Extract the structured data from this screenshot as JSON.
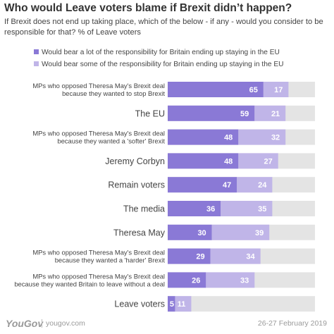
{
  "title": "Who would Leave voters blame if Brexit didn’t happen?",
  "subtitle": "If Brexit does not end up taking place, which of the below - if any - would you consider to be responsible for that? % of Leave voters",
  "colors": {
    "dark": "#8a79d6",
    "light": "#c0b5e8",
    "track": "#e4e4e4"
  },
  "footer": {
    "logo": "YouGov",
    "url": "yougov.com",
    "date": "26-27 February 2019"
  },
  "chart_data": {
    "type": "bar",
    "orientation": "horizontal",
    "stacked": true,
    "xlim": [
      0,
      100
    ],
    "grid": false,
    "legend_position": "top",
    "categories": [
      "MPs who opposed Theresa May's Brexit deal because they wanted to stop Brexit",
      "The EU",
      "MPs who opposed Theresa May's Brexit deal because they wanted a 'softer' Brexit",
      "Jeremy Corbyn",
      "Remain voters",
      "The media",
      "Theresa May",
      "MPs who opposed Theresa May's Brexit deal because they wanted a 'harder' Brexit",
      "MPs who opposed Theresa May's Brexit deal because they wanted Britain to leave without a deal",
      "Leave voters"
    ],
    "category_lines": [
      [
        "MPs who opposed Theresa May's Brexit deal",
        "because they wanted to stop Brexit"
      ],
      [
        "The EU"
      ],
      [
        "MPs who opposed Theresa May's Brexit deal",
        "because they wanted a 'softer' Brexit"
      ],
      [
        "Jeremy Corbyn"
      ],
      [
        "Remain voters"
      ],
      [
        "The media"
      ],
      [
        "Theresa May"
      ],
      [
        "MPs who opposed Theresa May's Brexit deal",
        "because they wanted a 'harder' Brexit"
      ],
      [
        "MPs who opposed Theresa May's Brexit deal",
        "because they wanted Britain to leave without a deal"
      ],
      [
        "Leave voters"
      ]
    ],
    "series": [
      {
        "name": "Would bear a lot of the responsibility for Britain ending up staying in the EU",
        "color": "#8a79d6",
        "values": [
          65,
          59,
          48,
          48,
          47,
          36,
          30,
          29,
          26,
          5
        ]
      },
      {
        "name": "Would bear some of the responsibility for Britain ending up staying in the EU",
        "color": "#c0b5e8",
        "values": [
          17,
          21,
          32,
          27,
          24,
          35,
          39,
          34,
          33,
          11
        ]
      }
    ]
  }
}
